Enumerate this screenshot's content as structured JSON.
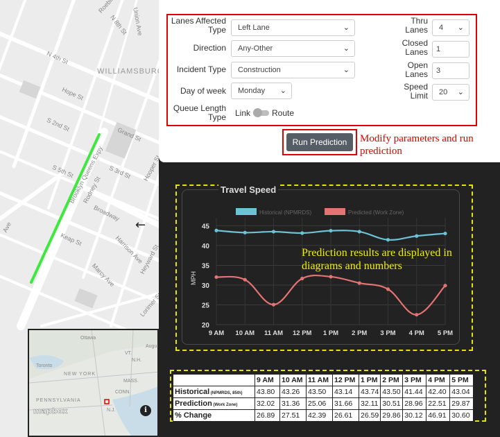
{
  "map": {
    "street_labels": [
      "N 8th St",
      "Roebling St",
      "Union Ave",
      "N 4th St",
      "WILLIAMSBURG",
      "Hope St",
      "S 2nd St",
      "Grand St",
      "S 5th St",
      "Brooklyn Queens Expy",
      "Rodney St",
      "S 3rd St",
      "Hooper St",
      "Broadway",
      "Keap St",
      "Harrison Ave",
      "Marcy Ave",
      "Heyward St",
      "Ave",
      "Lorimer St"
    ],
    "direction_arrow": "←",
    "segment_color": "#3ee83e",
    "minimap": {
      "labels": [
        "Ottawa",
        "Toronto",
        "NEW YORK",
        "VT.",
        "N.H.",
        "MASS.",
        "CONN.",
        "PENNSYLVANIA",
        "N.J.",
        "Augu"
      ],
      "attribution_logo": "mapbox",
      "info_icon": "i"
    }
  },
  "form": {
    "lanes_affected_type": {
      "label": "Lanes Affected Type",
      "value": "Left Lane"
    },
    "direction": {
      "label": "Direction",
      "value": "Any-Other"
    },
    "incident_type": {
      "label": "Incident Type",
      "value": "Construction"
    },
    "day_of_week": {
      "label": "Day of week",
      "value": "Monday"
    },
    "queue_length_type": {
      "label": "Queue Length Type",
      "option_left": "Link",
      "option_right": "Route"
    },
    "thru_lanes": {
      "label": "Thru Lanes",
      "value": "4"
    },
    "closed_lanes": {
      "label": "Closed Lanes",
      "value": "1"
    },
    "open_lanes": {
      "label": "Open Lanes",
      "value": "3"
    },
    "speed_limit": {
      "label": "Speed Limit",
      "value": "20"
    },
    "run_button": "Run Prediction"
  },
  "annotations": {
    "modify": "Modify parameters and run prediction",
    "results": "Prediction results are displayed in diagrams and numbers"
  },
  "colors": {
    "historical": "#6cc3d5",
    "predicted": "#e57373",
    "annotation_red": "#e00000",
    "annotation_yellow": "#f0f000"
  },
  "chart_data": {
    "type": "line",
    "title": "Travel Speed",
    "categories": [
      "9 AM",
      "10 AM",
      "11 AM",
      "12 PM",
      "1 PM",
      "2 PM",
      "3 PM",
      "4 PM",
      "5 PM"
    ],
    "series": [
      {
        "name": "Historical (NPMRDS)",
        "values": [
          43.8,
          43.26,
          43.5,
          43.14,
          43.74,
          43.5,
          41.44,
          42.4,
          43.04
        ]
      },
      {
        "name": "Predicted (Work Zone)",
        "values": [
          32.02,
          31.36,
          25.06,
          31.66,
          32.11,
          30.51,
          28.96,
          22.51,
          29.87
        ]
      }
    ],
    "ylabel": "MPH",
    "yticks": [
      20,
      25,
      30,
      35,
      40,
      45
    ],
    "ylim": [
      20,
      47
    ],
    "grid": true,
    "legend": "top"
  },
  "table": {
    "columns": [
      "",
      "9 AM",
      "10 AM",
      "11 AM",
      "12 PM",
      "1 PM",
      "2 PM",
      "3 PM",
      "4 PM",
      "5 PM"
    ],
    "rows": [
      {
        "label": "Historical",
        "sub": "(NPMRDS, 85th)",
        "values": [
          "43.80",
          "43.26",
          "43.50",
          "43.14",
          "43.74",
          "43.50",
          "41.44",
          "42.40",
          "43.04"
        ]
      },
      {
        "label": "Prediction",
        "sub": "(Work Zone)",
        "values": [
          "32.02",
          "31.36",
          "25.06",
          "31.66",
          "32.11",
          "30.51",
          "28.96",
          "22.51",
          "29.87"
        ]
      },
      {
        "label": "% Change",
        "sub": "",
        "values": [
          "26.89",
          "27.51",
          "42.39",
          "26.61",
          "26.59",
          "29.86",
          "30.12",
          "46.91",
          "30.60"
        ]
      }
    ]
  }
}
